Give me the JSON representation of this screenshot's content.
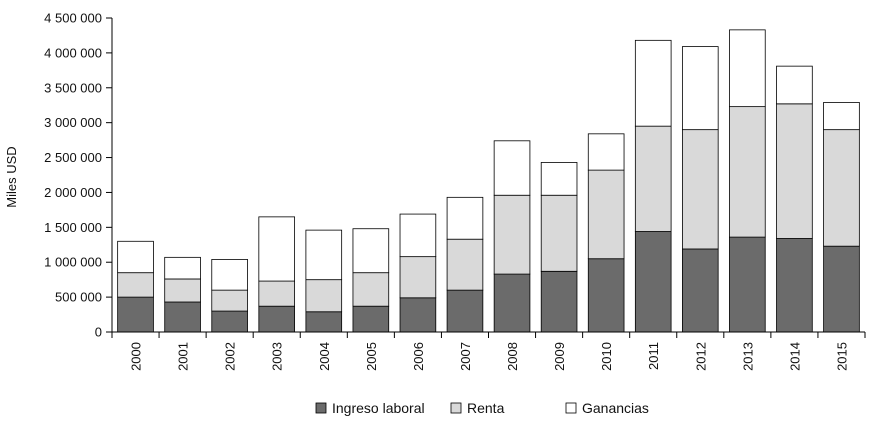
{
  "chart_data": {
    "type": "bar",
    "stacked": true,
    "ylabel": "Miles USD",
    "xlabel": "",
    "ylim": [
      0,
      4500000
    ],
    "yticks": [
      0,
      500000,
      1000000,
      1500000,
      2000000,
      2500000,
      3000000,
      3500000,
      4000000,
      4500000
    ],
    "ytick_labels": [
      "0",
      "500 000",
      "1 000 000",
      "1 500 000",
      "2 000 000",
      "2 500 000",
      "3 000 000",
      "3 500 000",
      "4 000 000",
      "4 500 000"
    ],
    "grid": false,
    "legend_position": "bottom",
    "categories": [
      "2000",
      "2001",
      "2002",
      "2003",
      "2004",
      "2005",
      "2006",
      "2007",
      "2008",
      "2009",
      "2010",
      "2011",
      "2012",
      "2013",
      "2014",
      "2015"
    ],
    "series": [
      {
        "name": "Ingreso laboral",
        "color": "#6b6b6b",
        "values": [
          500000,
          430000,
          300000,
          370000,
          290000,
          370000,
          490000,
          600000,
          830000,
          870000,
          1050000,
          1440000,
          1190000,
          1360000,
          1340000,
          1230000
        ]
      },
      {
        "name": "Renta",
        "color": "#d9d9d9",
        "values": [
          350000,
          330000,
          300000,
          360000,
          460000,
          480000,
          590000,
          730000,
          1130000,
          1090000,
          1270000,
          1510000,
          1710000,
          1870000,
          1930000,
          1670000
        ]
      },
      {
        "name": "Ganancias",
        "color": "#ffffff",
        "values": [
          450000,
          310000,
          440000,
          920000,
          710000,
          630000,
          610000,
          600000,
          780000,
          470000,
          520000,
          1230000,
          1190000,
          1100000,
          540000,
          390000
        ]
      }
    ]
  }
}
